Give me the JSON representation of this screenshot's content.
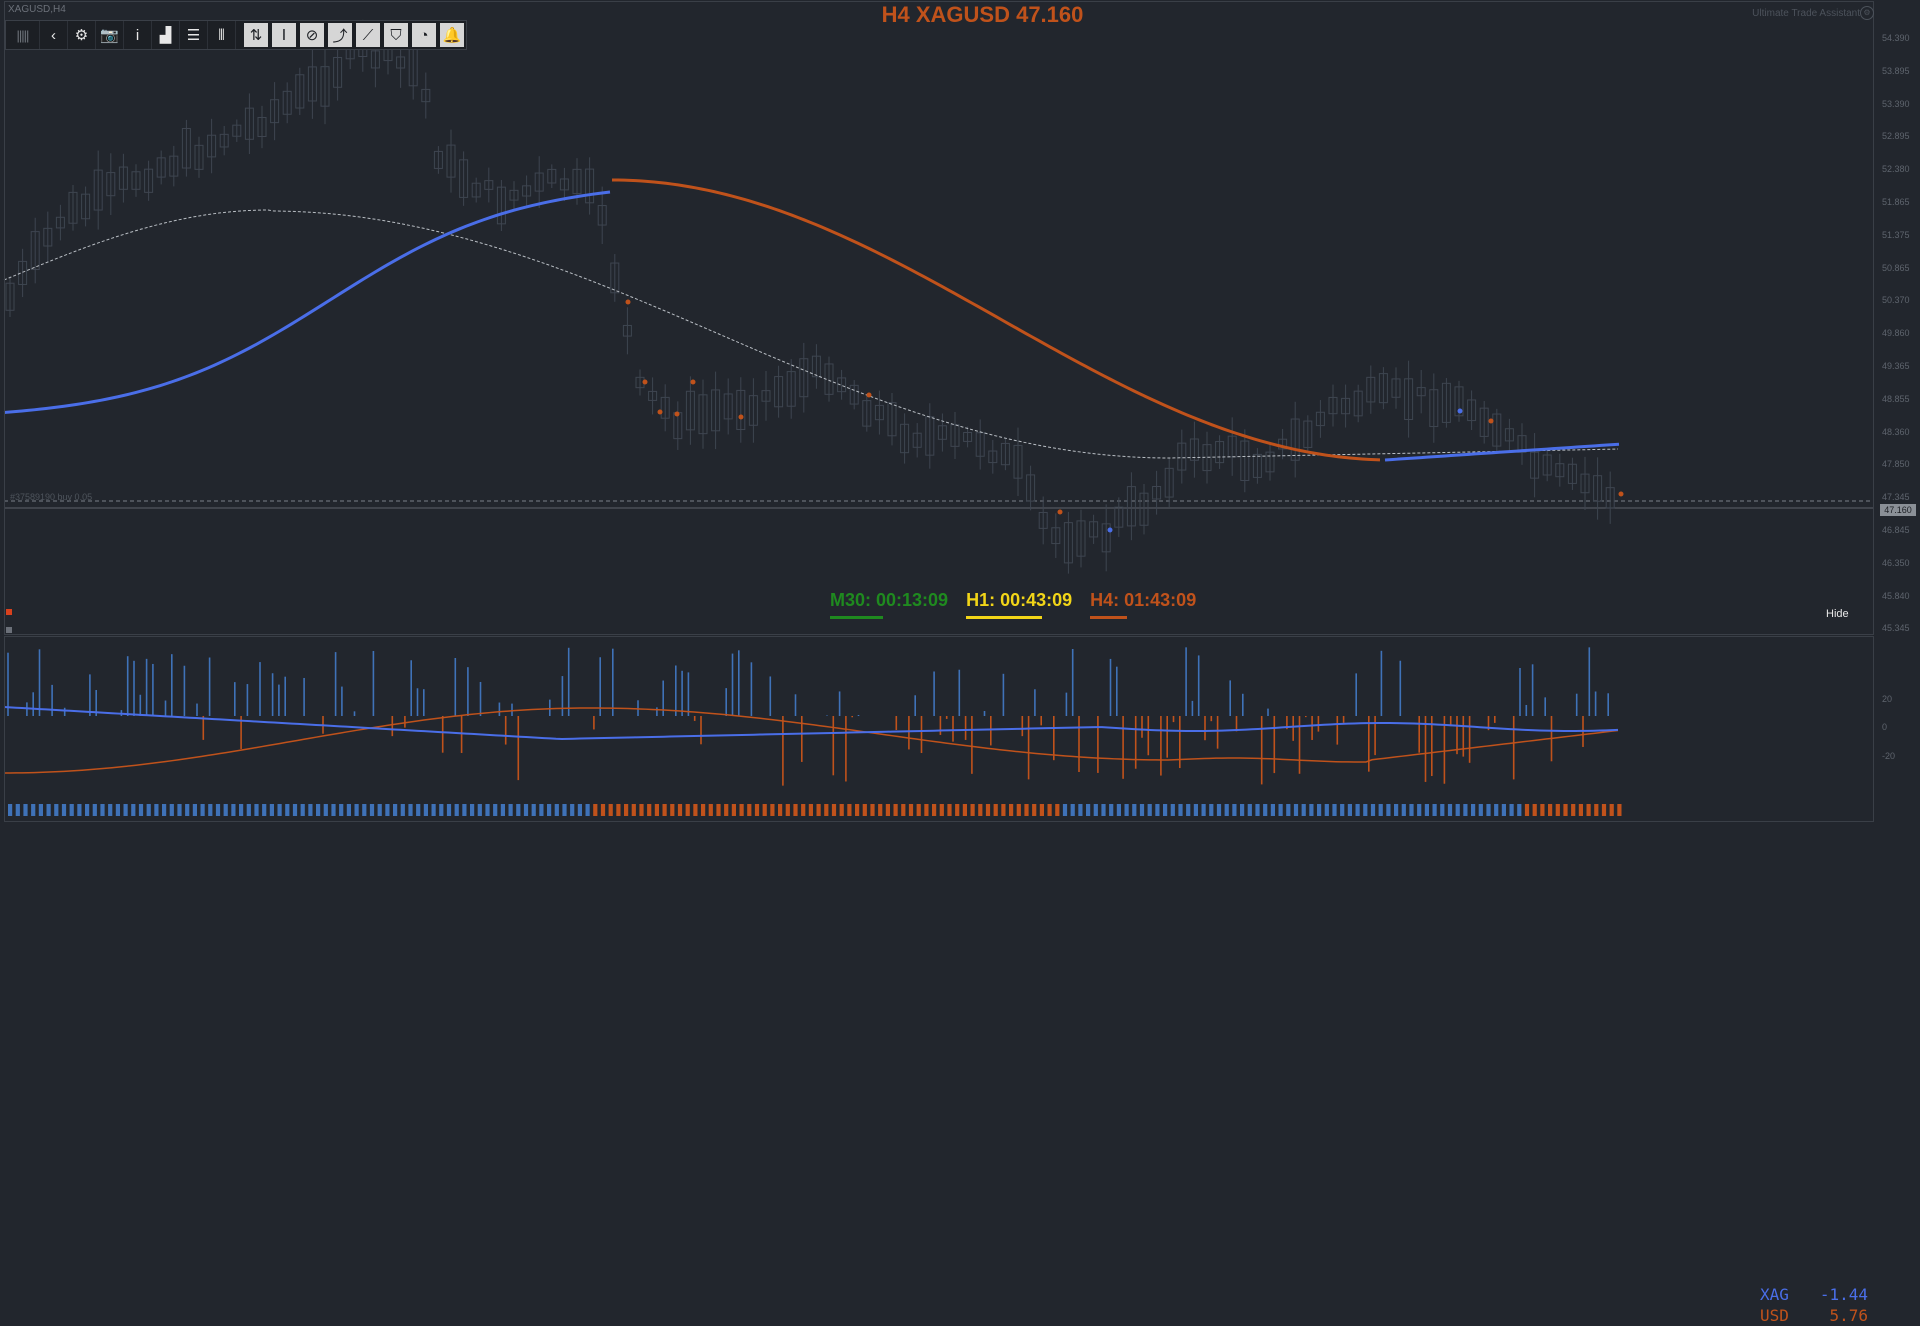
{
  "window": {
    "symbol_label": "XAGUSD,H4",
    "title": "H4 XAGUSD 47.160",
    "assistant_label": "Ultimate Trade Assistant",
    "assistant_icon": "gear-icon"
  },
  "toolbar": {
    "items": [
      {
        "name": "grip-handle",
        "glyph": "|||||"
      },
      {
        "name": "back-icon",
        "glyph": "‹"
      },
      {
        "name": "gear-icon",
        "glyph": "⚙"
      },
      {
        "name": "camera-icon",
        "glyph": "📷"
      },
      {
        "name": "info-icon",
        "glyph": "i"
      },
      {
        "name": "bar-chart-icon",
        "glyph": "▟"
      },
      {
        "name": "list-icon",
        "glyph": "☰"
      },
      {
        "name": "candles-icon",
        "glyph": "⫴"
      },
      {
        "name": "buy-sell-icon",
        "glyph": "⇅"
      },
      {
        "name": "range-icon",
        "glyph": "Ⅰ"
      },
      {
        "name": "eraser-icon",
        "glyph": "⊘"
      },
      {
        "name": "trend-up-icon",
        "glyph": "⤴"
      },
      {
        "name": "trend-lines-icon",
        "glyph": "⟋"
      },
      {
        "name": "shield-icon",
        "glyph": "⛉"
      },
      {
        "name": "pie-chart-icon",
        "glyph": "◔"
      },
      {
        "name": "bell-icon",
        "glyph": "🔔"
      }
    ]
  },
  "price_axis": {
    "labels": [
      "54.390",
      "53.895",
      "53.390",
      "52.895",
      "52.380",
      "51.865",
      "51.375",
      "50.865",
      "50.370",
      "49.860",
      "49.365",
      "48.855",
      "48.360",
      "47.850",
      "47.345",
      "46.845",
      "46.350",
      "45.840",
      "45.345"
    ],
    "current_price": "47.160",
    "current_price_color": "#8a8f96"
  },
  "order_line": {
    "label": "#37589190 buy 0.05"
  },
  "timers": [
    {
      "label": "M30: 00:13:09",
      "color": "#1f8a1f",
      "bar_fraction": 0.45
    },
    {
      "label": "H1: 00:43:09",
      "color": "#f2d518",
      "bar_fraction": 0.72
    },
    {
      "label": "H4: 01:43:09",
      "color": "#c0521b",
      "bar_fraction": 0.35
    }
  ],
  "hide_button": "Hide",
  "strength_legend": [
    {
      "currency": "XAG",
      "value": "-1.44",
      "color": "#4a6ee8"
    },
    {
      "currency": "USD",
      "value": "5.76",
      "color": "#c0521b"
    }
  ],
  "sub_axis": {
    "labels": [
      "20",
      "0",
      "-20"
    ]
  },
  "colors": {
    "background": "#22262d",
    "ma_up": "#4a6ee8",
    "ma_down": "#c0521b",
    "candle": "#3e4550",
    "xag_line": "#4a6ee8",
    "usd_line": "#c0521b",
    "hist_pos": "#3f72b8",
    "hist_neg": "#c0521b"
  }
}
